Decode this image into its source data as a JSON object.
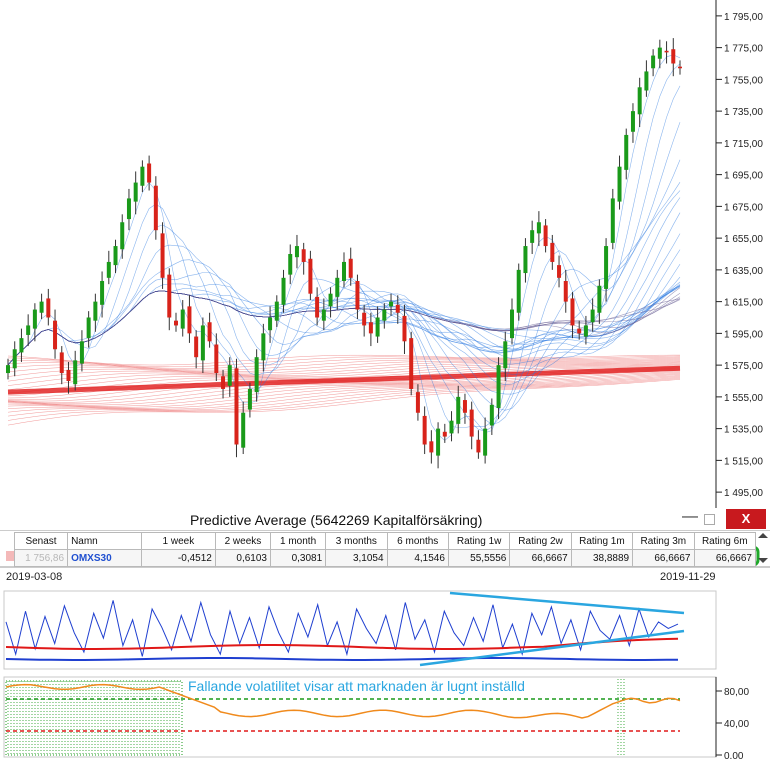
{
  "window": {
    "title": "Predictive Average (5642269  Kapitalförsäkring)",
    "close_label": "X",
    "minimize_label": "—"
  },
  "chart_data": [
    {
      "type": "candlestick",
      "title": "",
      "y_axis_labels": [
        "1 795,00",
        "1 775,00",
        "1 755,00",
        "1 735,00",
        "1 715,00",
        "1 695,00",
        "1 675,00",
        "1 655,00",
        "1 635,00",
        "1 615,00",
        "1 595,00",
        "1 575,00",
        "1 555,00",
        "1 535,00",
        "1 515,00",
        "1 495,00"
      ],
      "ylim": [
        1485,
        1805
      ],
      "x_start": "2019-03-08",
      "x_end": "2019-11-29",
      "close": [
        1575,
        1585,
        1592,
        1600,
        1610,
        1615,
        1605,
        1585,
        1570,
        1565,
        1578,
        1590,
        1605,
        1615,
        1628,
        1640,
        1650,
        1665,
        1680,
        1690,
        1700,
        1690,
        1660,
        1630,
        1605,
        1600,
        1610,
        1595,
        1580,
        1600,
        1590,
        1570,
        1560,
        1575,
        1525,
        1545,
        1560,
        1580,
        1595,
        1605,
        1615,
        1630,
        1645,
        1650,
        1640,
        1620,
        1605,
        1610,
        1620,
        1630,
        1640,
        1630,
        1610,
        1600,
        1595,
        1605,
        1610,
        1615,
        1608,
        1590,
        1560,
        1545,
        1525,
        1520,
        1535,
        1530,
        1540,
        1555,
        1545,
        1530,
        1520,
        1535,
        1550,
        1575,
        1590,
        1610,
        1635,
        1650,
        1660,
        1665,
        1650,
        1640,
        1630,
        1615,
        1600,
        1595,
        1600,
        1610,
        1625,
        1650,
        1680,
        1700,
        1720,
        1735,
        1750,
        1760,
        1770,
        1775,
        1772,
        1765,
        1762
      ]
    },
    {
      "type": "table",
      "columns": [
        "Senast",
        "Namn",
        "1 week",
        "2 weeks",
        "1 month",
        "3 months",
        "6 months",
        "Rating 1w",
        "Rating 2w",
        "Rating 1m",
        "Rating 3m",
        "Rating 6m"
      ],
      "row": [
        "1 756,86",
        "OMXS30",
        "-0,4512",
        "0,6103",
        "0,3081",
        "3,1054",
        "4,1546",
        "55,5556",
        "66,6667",
        "38,8889",
        "66,6667",
        "66,6667"
      ]
    },
    {
      "type": "line",
      "series": [],
      "blue_line": [
        40,
        10,
        50,
        15,
        45,
        20,
        55,
        30,
        12,
        48,
        25,
        60,
        18,
        42,
        8,
        52,
        35,
        14,
        46,
        22,
        58,
        28,
        10,
        50,
        20,
        44,
        16,
        54,
        30,
        12,
        48,
        26,
        56,
        18,
        40,
        10,
        52,
        34,
        20,
        46,
        14,
        58,
        24,
        42,
        12,
        50,
        30,
        18,
        44,
        22,
        56,
        16,
        38,
        10,
        48,
        28,
        54,
        20,
        42,
        14,
        50,
        32,
        24,
        46,
        18,
        52,
        26,
        40,
        34,
        38
      ]
    },
    {
      "type": "line",
      "annotation": "Fallande volatilitet visar att marknaden är lugnt inställd",
      "y_axis_labels": [
        "80,00",
        "40,00",
        "0,00"
      ],
      "ylim": [
        0,
        95
      ],
      "upper_threshold": 70,
      "lower_threshold": 30
    }
  ],
  "colors": {
    "up": "#1a9a1a",
    "down": "#d8231a",
    "blue": "#1f3fd0",
    "red": "#e01818",
    "orange": "#f08a1c",
    "cyan": "#2aa6e0",
    "highlight_red": "#e81b1b",
    "highlight_green": "#1fa82a"
  }
}
